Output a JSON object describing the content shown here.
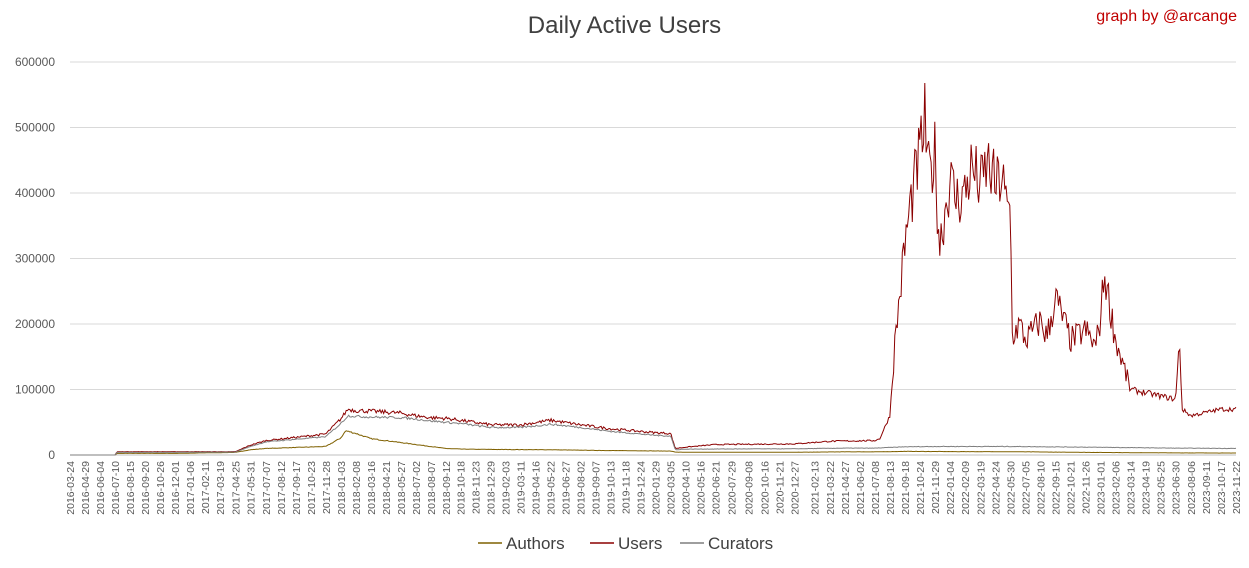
{
  "chart_data": {
    "type": "line",
    "title": "Daily Active Users",
    "credit": "graph by @arcange",
    "ylim": [
      0,
      600000
    ],
    "y_ticks": [
      "0",
      "100000",
      "200000",
      "300000",
      "400000",
      "500000",
      "600000"
    ],
    "grid": true,
    "legend_position": "bottom",
    "x_tick_labels": [
      "2016-03-24",
      "2016-04-29",
      "2016-06-04",
      "2016-07-10",
      "2016-08-15",
      "2016-09-20",
      "2016-10-26",
      "2016-12-01",
      "2017-01-06",
      "2017-02-11",
      "2017-03-19",
      "2017-04-25",
      "2017-05-31",
      "2017-07-07",
      "2017-08-12",
      "2017-09-17",
      "2017-10-23",
      "2017-11-28",
      "2018-01-03",
      "2018-02-08",
      "2018-03-16",
      "2018-04-21",
      "2018-05-27",
      "2018-07-02",
      "2018-08-07",
      "2018-09-12",
      "2018-10-18",
      "2018-11-23",
      "2018-12-29",
      "2019-02-03",
      "2019-03-11",
      "2019-04-16",
      "2019-05-22",
      "2019-06-27",
      "2019-08-02",
      "2019-09-07",
      "2019-10-13",
      "2019-11-18",
      "2019-12-24",
      "2020-01-29",
      "2020-03-05",
      "2020-04-10",
      "2020-05-16",
      "2020-06-21",
      "2020-07-29",
      "2020-09-08",
      "2020-10-16",
      "2020-11-21",
      "2020-12-27",
      "2021-02-13",
      "2021-03-22",
      "2021-04-27",
      "2021-06-02",
      "2021-07-08",
      "2021-08-13",
      "2021-09-18",
      "2021-10-24",
      "2021-11-29",
      "2022-01-04",
      "2022-02-09",
      "2022-03-19",
      "2022-04-24",
      "2022-05-30",
      "2022-07-05",
      "2022-08-10",
      "2022-09-15",
      "2022-10-21",
      "2022-11-26",
      "2023-01-01",
      "2023-02-06",
      "2023-03-14",
      "2023-04-19",
      "2023-05-25",
      "2023-06-30",
      "2023-08-06",
      "2023-09-11",
      "2023-10-17",
      "2023-11-22"
    ],
    "series": [
      {
        "name": "Authors",
        "color": "#7f6000",
        "points": [
          [
            "2016-03-24",
            0
          ],
          [
            "2016-07-10",
            0
          ],
          [
            "2016-07-15",
            2500
          ],
          [
            "2016-12-01",
            2500
          ],
          [
            "2017-04-25",
            4000
          ],
          [
            "2017-05-31",
            8000
          ],
          [
            "2017-07-07",
            10000
          ],
          [
            "2017-09-17",
            11500
          ],
          [
            "2017-11-28",
            13000
          ],
          [
            "2018-01-03",
            26000
          ],
          [
            "2018-01-15",
            37000
          ],
          [
            "2018-02-08",
            33000
          ],
          [
            "2018-03-16",
            25000
          ],
          [
            "2018-05-27",
            19000
          ],
          [
            "2018-07-02",
            16000
          ],
          [
            "2018-08-07",
            13000
          ],
          [
            "2018-09-12",
            10000
          ],
          [
            "2018-10-18",
            9000
          ],
          [
            "2018-12-29",
            8500
          ],
          [
            "2019-05-22",
            8000
          ],
          [
            "2019-09-07",
            7000
          ],
          [
            "2020-03-05",
            6000
          ],
          [
            "2020-03-16",
            4500
          ],
          [
            "2020-04-10",
            4200
          ],
          [
            "2020-12-27",
            4200
          ],
          [
            "2021-04-27",
            4800
          ],
          [
            "2021-07-08",
            4800
          ],
          [
            "2021-09-18",
            5500
          ],
          [
            "2021-11-29",
            5300
          ],
          [
            "2022-05-30",
            5000
          ],
          [
            "2022-11-26",
            4000
          ],
          [
            "2023-06-30",
            3200
          ],
          [
            "2023-11-22",
            3000
          ]
        ]
      },
      {
        "name": "Users",
        "color": "#8b0000",
        "points": [
          [
            "2016-03-24",
            0
          ],
          [
            "2016-07-10",
            0
          ],
          [
            "2016-07-15",
            5000
          ],
          [
            "2016-12-01",
            5000
          ],
          [
            "2017-04-25",
            5000
          ],
          [
            "2017-05-31",
            15000
          ],
          [
            "2017-07-07",
            22000
          ],
          [
            "2017-09-17",
            27000
          ],
          [
            "2017-11-28",
            32000
          ],
          [
            "2018-01-03",
            55000
          ],
          [
            "2018-01-20",
            70000
          ],
          [
            "2018-02-08",
            68000
          ],
          [
            "2018-03-16",
            67000
          ],
          [
            "2018-05-27",
            64000
          ],
          [
            "2018-07-02",
            60000
          ],
          [
            "2018-08-07",
            57000
          ],
          [
            "2018-09-12",
            56000
          ],
          [
            "2018-10-18",
            53000
          ],
          [
            "2018-12-29",
            46000
          ],
          [
            "2019-03-11",
            46000
          ],
          [
            "2019-05-22",
            53000
          ],
          [
            "2019-08-02",
            46000
          ],
          [
            "2019-10-13",
            40000
          ],
          [
            "2020-01-29",
            34000
          ],
          [
            "2020-03-05",
            33000
          ],
          [
            "2020-03-16",
            10000
          ],
          [
            "2020-04-10",
            12000
          ],
          [
            "2020-06-21",
            16000
          ],
          [
            "2020-12-27",
            17000
          ],
          [
            "2021-03-22",
            21000
          ],
          [
            "2021-07-08",
            22000
          ],
          [
            "2021-07-20",
            25000
          ],
          [
            "2021-08-13",
            60000
          ],
          [
            "2021-08-25",
            170000
          ],
          [
            "2021-09-18",
            320000
          ],
          [
            "2021-10-01",
            380000
          ],
          [
            "2021-10-24",
            460000
          ],
          [
            "2021-11-05",
            510000
          ],
          [
            "2021-11-15",
            420000
          ],
          [
            "2021-11-29",
            460000
          ],
          [
            "2021-12-10",
            320000
          ],
          [
            "2022-01-04",
            420000
          ],
          [
            "2022-01-20",
            390000
          ],
          [
            "2022-02-09",
            400000
          ],
          [
            "2022-02-25",
            440000
          ],
          [
            "2022-03-19",
            410000
          ],
          [
            "2022-04-05",
            445000
          ],
          [
            "2022-04-24",
            410000
          ],
          [
            "2022-05-10",
            425000
          ],
          [
            "2022-05-20",
            375000
          ],
          [
            "2022-05-30",
            370000
          ],
          [
            "2022-06-03",
            180000
          ],
          [
            "2022-06-20",
            200000
          ],
          [
            "2022-07-05",
            175000
          ],
          [
            "2022-08-10",
            205000
          ],
          [
            "2022-08-25",
            180000
          ],
          [
            "2022-09-15",
            240000
          ],
          [
            "2022-10-21",
            175000
          ],
          [
            "2022-11-26",
            190000
          ],
          [
            "2022-12-20",
            165000
          ],
          [
            "2023-01-01",
            210000
          ],
          [
            "2023-01-10",
            280000
          ],
          [
            "2023-01-20",
            240000
          ],
          [
            "2023-02-06",
            175000
          ],
          [
            "2023-03-14",
            100000
          ],
          [
            "2023-04-19",
            95000
          ],
          [
            "2023-05-25",
            90000
          ],
          [
            "2023-06-30",
            85000
          ],
          [
            "2023-07-10",
            175000
          ],
          [
            "2023-07-15",
            70000
          ],
          [
            "2023-08-06",
            60000
          ],
          [
            "2023-09-11",
            65000
          ],
          [
            "2023-10-17",
            70000
          ],
          [
            "2023-11-22",
            70000
          ]
        ]
      },
      {
        "name": "Curators",
        "color": "#7f7f7f",
        "points": [
          [
            "2016-03-24",
            0
          ],
          [
            "2016-07-10",
            0
          ],
          [
            "2016-07-15",
            4000
          ],
          [
            "2016-12-01",
            4000
          ],
          [
            "2017-04-25",
            4500
          ],
          [
            "2017-05-31",
            13000
          ],
          [
            "2017-07-07",
            20000
          ],
          [
            "2017-09-17",
            24000
          ],
          [
            "2017-11-28",
            28000
          ],
          [
            "2018-01-03",
            48000
          ],
          [
            "2018-01-20",
            60000
          ],
          [
            "2018-02-08",
            59000
          ],
          [
            "2018-03-16",
            58000
          ],
          [
            "2018-05-27",
            57000
          ],
          [
            "2018-07-02",
            55000
          ],
          [
            "2018-08-07",
            52000
          ],
          [
            "2018-09-12",
            50000
          ],
          [
            "2018-10-18",
            48000
          ],
          [
            "2018-12-29",
            42000
          ],
          [
            "2019-03-11",
            42000
          ],
          [
            "2019-05-22",
            47000
          ],
          [
            "2019-08-02",
            42000
          ],
          [
            "2019-10-13",
            36000
          ],
          [
            "2020-01-29",
            30000
          ],
          [
            "2020-03-05",
            29000
          ],
          [
            "2020-03-16",
            8000
          ],
          [
            "2020-04-10",
            9000
          ],
          [
            "2020-12-27",
            9500
          ],
          [
            "2021-04-27",
            10500
          ],
          [
            "2021-07-08",
            10500
          ],
          [
            "2021-09-18",
            12500
          ],
          [
            "2021-11-29",
            13000
          ],
          [
            "2022-05-30",
            13000
          ],
          [
            "2022-11-26",
            12000
          ],
          [
            "2023-06-30",
            10500
          ],
          [
            "2023-11-22",
            10000
          ]
        ]
      }
    ]
  }
}
